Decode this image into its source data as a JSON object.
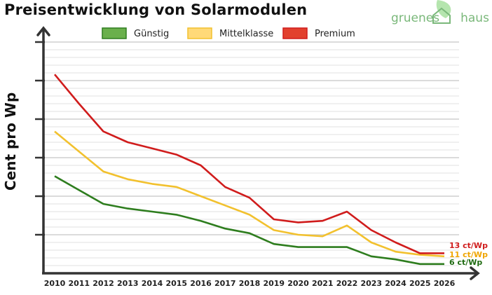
{
  "title": "Preisentwicklung von Solarmodulen",
  "logo": {
    "left": "gruenes",
    "right": "haus"
  },
  "chart_data": {
    "type": "line",
    "title": "Preisentwicklung von Solarmodulen",
    "xlabel": "",
    "ylabel": "Cent pro Wp",
    "categories": [
      "2010",
      "2011",
      "2012",
      "2013",
      "2014",
      "2015",
      "2016",
      "2017",
      "2018",
      "2019",
      "2020",
      "2021",
      "2022",
      "2023",
      "2024",
      "2025",
      "2026"
    ],
    "ylim": [
      0,
      150
    ],
    "y_tick_values": [
      25,
      50,
      75,
      100,
      125,
      150
    ],
    "grid": true,
    "legend_position": "top",
    "series": [
      {
        "name": "Günstig",
        "color": "#2e7d1e",
        "fill": "#6ab04c",
        "values": [
          63,
          54,
          45,
          42,
          40,
          38,
          34,
          29,
          26,
          19,
          17,
          17,
          17,
          11,
          9,
          6,
          6
        ],
        "end_label": "6 ct/Wp",
        "end_label_color": "#1f6b12"
      },
      {
        "name": "Mittelklasse",
        "color": "#f2c12e",
        "fill": "#ffd978",
        "values": [
          92,
          79,
          66,
          61,
          58,
          56,
          50,
          44,
          38,
          28,
          25,
          24,
          31,
          20,
          14,
          12,
          11
        ],
        "end_label": "11 ct/Wp",
        "end_label_color": "#f0a500"
      },
      {
        "name": "Premium",
        "color": "#d01c1c",
        "fill": "#e2402e",
        "values": [
          129,
          110,
          92,
          85,
          81,
          77,
          70,
          56,
          49,
          35,
          33,
          34,
          40,
          28,
          20,
          13,
          13
        ],
        "end_label": "13 ct/Wp",
        "end_label_color": "#d01c1c"
      }
    ]
  }
}
